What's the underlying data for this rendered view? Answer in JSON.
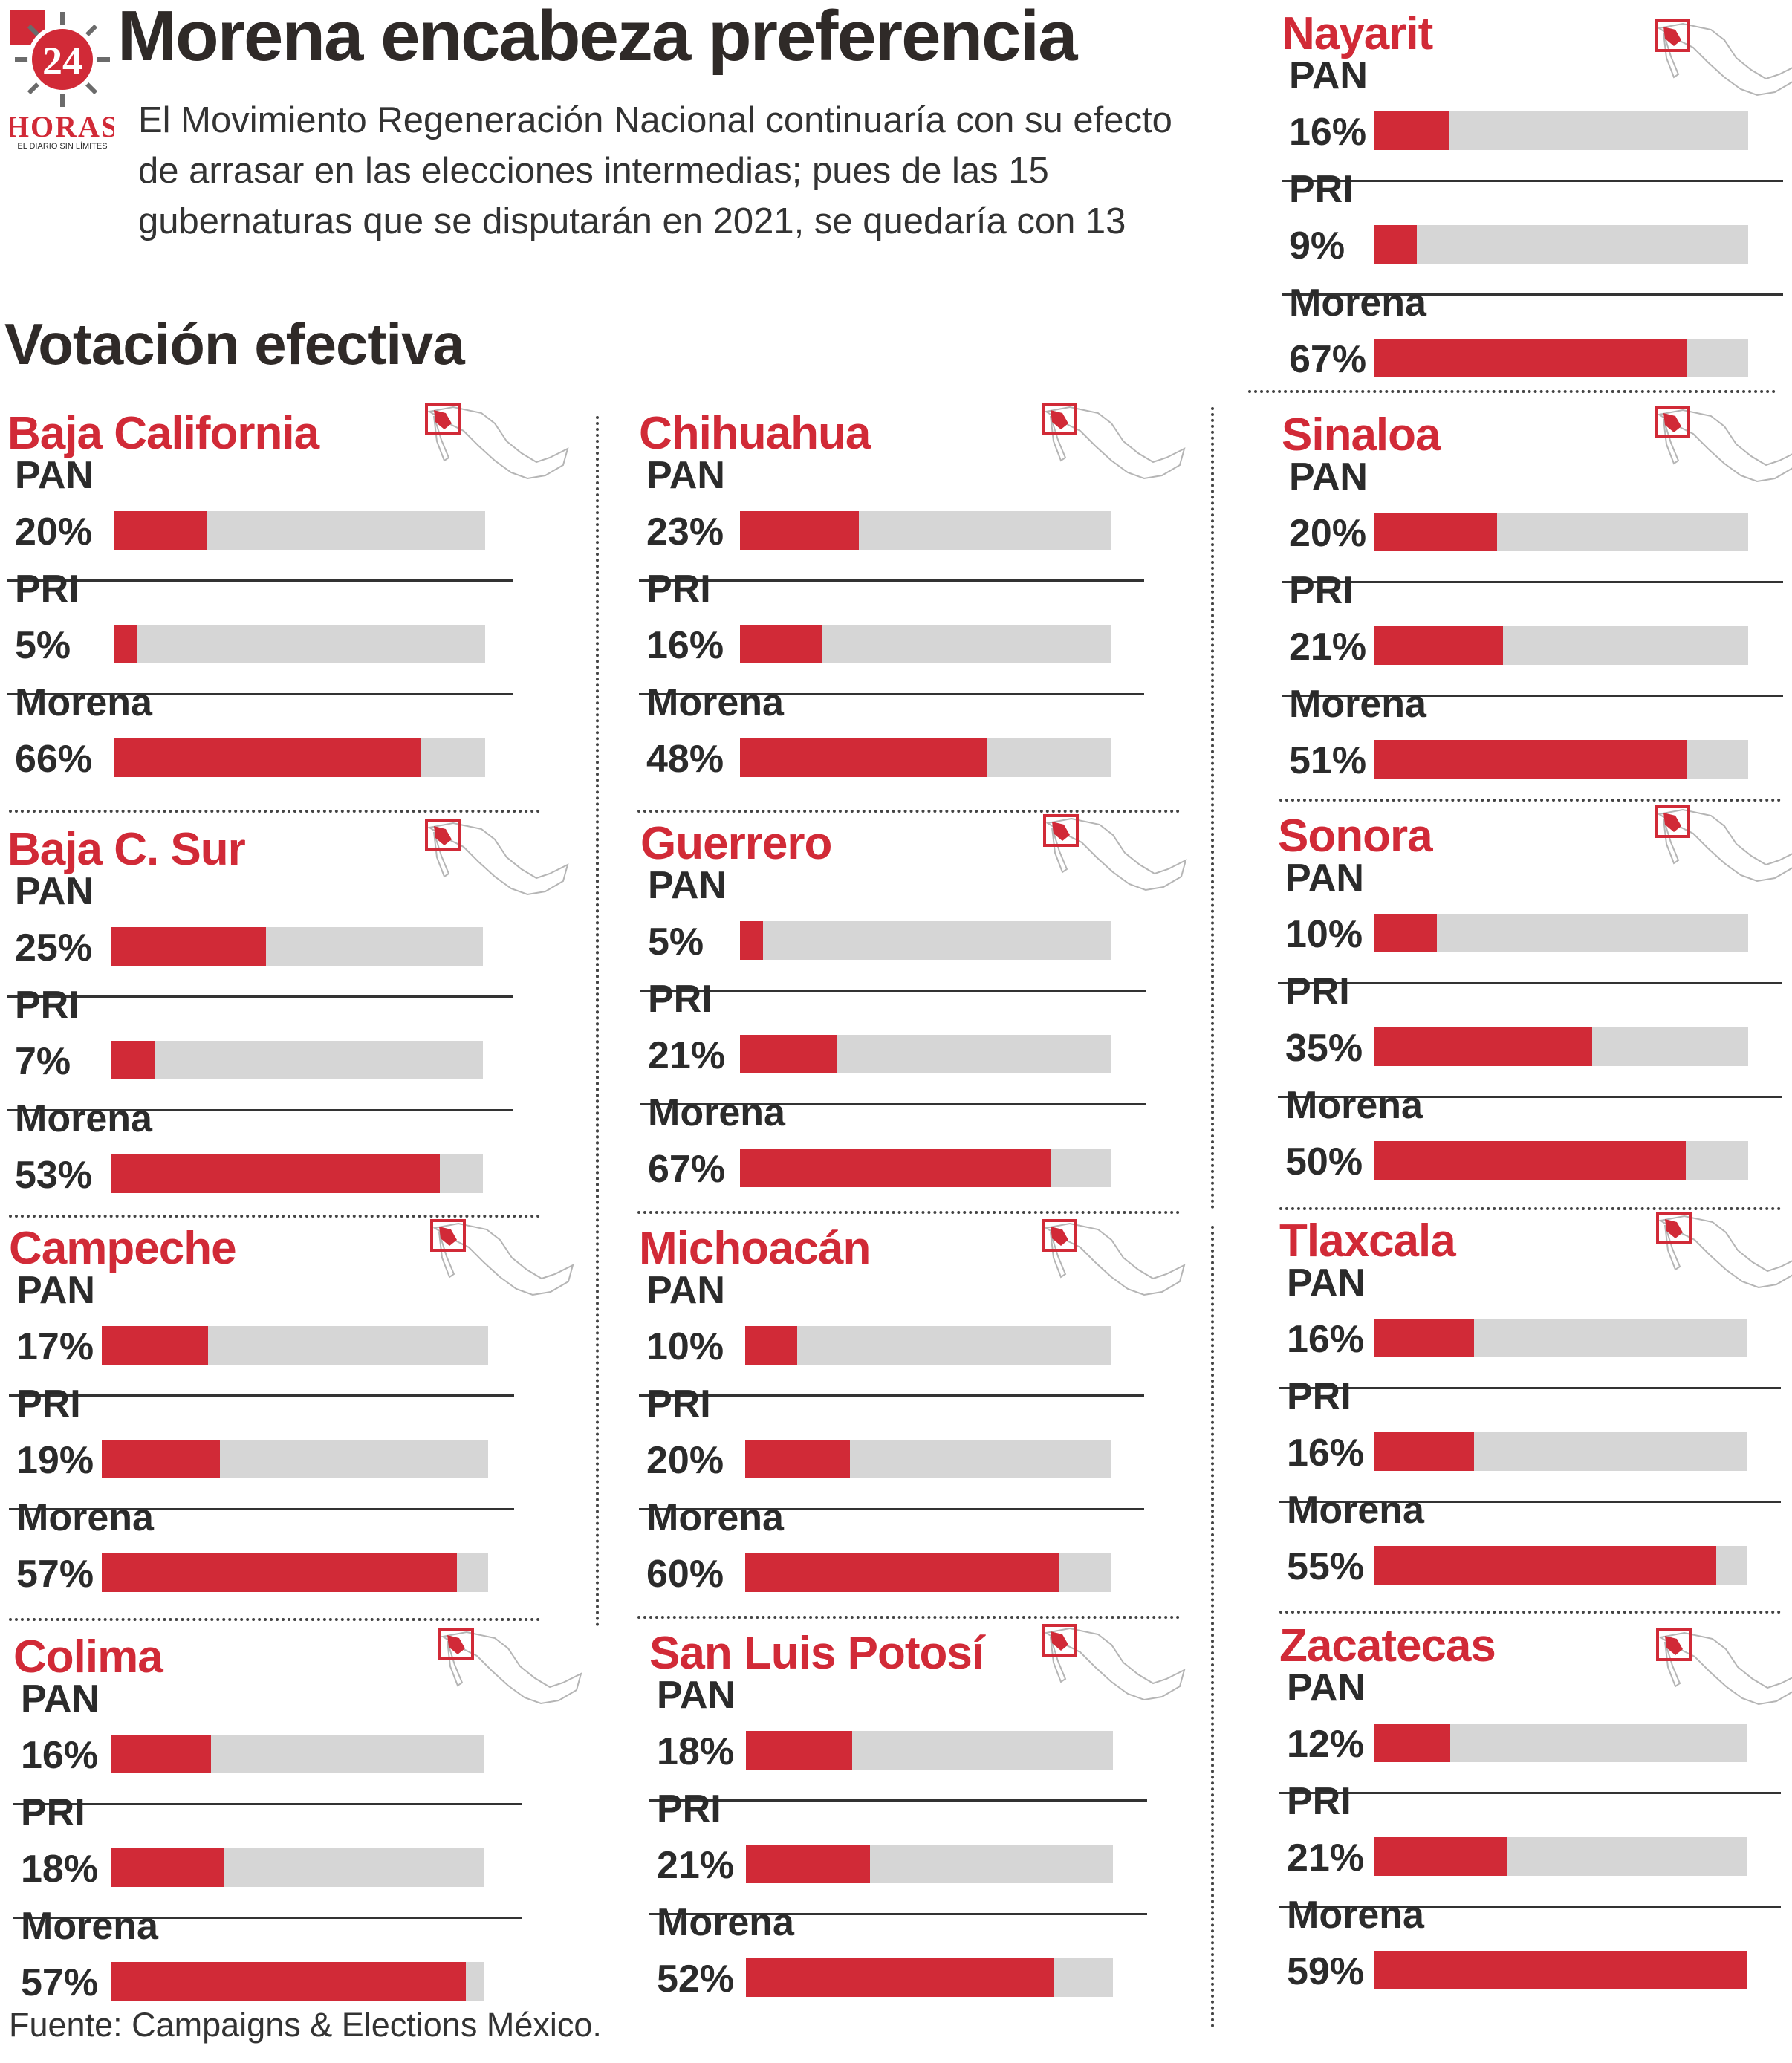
{
  "brand": {
    "logo_number": "24",
    "logo_name": "HORAS",
    "logo_tagline": "EL DIARIO SIN LÍMITES"
  },
  "title": "Morena encabeza preferencia",
  "subtitle": "El Movimiento Regeneración Nacional continuaría con su efecto de arrasar en las elecciones intermedias; pues de las 15 gubernaturas que se disputarán en 2021, se quedaría con 13",
  "section_title": "Votación efectiva",
  "source": "Fuente: Campaigns & Elections México.",
  "colors": {
    "accent": "#d12a37",
    "track": "#d6d6d6",
    "text": "#2b2b2b"
  },
  "chart_data": [
    {
      "type": "bar",
      "title": "Baja California",
      "categories": [
        "PAN",
        "PRI",
        "Morena"
      ],
      "values": [
        20,
        5,
        66
      ],
      "value_labels": [
        "20%",
        "5%",
        "66%"
      ],
      "xlim": [
        0,
        80
      ],
      "icon": "mexico-map-icon"
    },
    {
      "type": "bar",
      "title": "Baja C. Sur",
      "categories": [
        "PAN",
        "PRI",
        "Morena"
      ],
      "values": [
        25,
        7,
        53
      ],
      "value_labels": [
        "25%",
        "7%",
        "53%"
      ],
      "xlim": [
        0,
        60
      ],
      "icon": "mexico-map-icon"
    },
    {
      "type": "bar",
      "title": "Campeche",
      "categories": [
        "PAN",
        "PRI",
        "Morena"
      ],
      "values": [
        17,
        19,
        57
      ],
      "value_labels": [
        "17%",
        "19%",
        "57%"
      ],
      "xlim": [
        0,
        62
      ],
      "icon": "mexico-map-icon"
    },
    {
      "type": "bar",
      "title": "Colima",
      "categories": [
        "PAN",
        "PRI",
        "Morena"
      ],
      "values": [
        16,
        18,
        57
      ],
      "value_labels": [
        "16%",
        "18%",
        "57%"
      ],
      "xlim": [
        0,
        60
      ],
      "icon": "mexico-map-icon"
    },
    {
      "type": "bar",
      "title": "Chihuahua",
      "categories": [
        "PAN",
        "PRI",
        "Morena"
      ],
      "values": [
        23,
        16,
        48
      ],
      "value_labels": [
        "23%",
        "16%",
        "48%"
      ],
      "xlim": [
        0,
        72
      ],
      "icon": "mexico-map-icon"
    },
    {
      "type": "bar",
      "title": "Guerrero",
      "categories": [
        "PAN",
        "PRI",
        "Morena"
      ],
      "values": [
        5,
        21,
        67
      ],
      "value_labels": [
        "5%",
        "21%",
        "67%"
      ],
      "xlim": [
        0,
        80
      ],
      "icon": "mexico-map-icon"
    },
    {
      "type": "bar",
      "title": "Michoacán",
      "categories": [
        "PAN",
        "PRI",
        "Morena"
      ],
      "values": [
        10,
        20,
        60
      ],
      "value_labels": [
        "10%",
        "20%",
        "60%"
      ],
      "xlim": [
        0,
        70
      ],
      "icon": "mexico-map-icon"
    },
    {
      "type": "bar",
      "title": "San Luis Potosí",
      "categories": [
        "PAN",
        "PRI",
        "Morena"
      ],
      "values": [
        18,
        21,
        52
      ],
      "value_labels": [
        "18%",
        "21%",
        "52%"
      ],
      "xlim": [
        0,
        62
      ],
      "icon": "mexico-map-icon"
    },
    {
      "type": "bar",
      "title": "Nayarit",
      "categories": [
        "PAN",
        "PRI",
        "Morena"
      ],
      "values": [
        16,
        9,
        67
      ],
      "value_labels": [
        "16%",
        "9%",
        "67%"
      ],
      "xlim": [
        0,
        80
      ],
      "icon": "mexico-map-icon"
    },
    {
      "type": "bar",
      "title": "Sinaloa",
      "categories": [
        "PAN",
        "PRI",
        "Morena"
      ],
      "values": [
        20,
        21,
        51
      ],
      "value_labels": [
        "20%",
        "21%",
        "51%"
      ],
      "xlim": [
        0,
        61
      ],
      "icon": "mexico-map-icon"
    },
    {
      "type": "bar",
      "title": "Sonora",
      "categories": [
        "PAN",
        "PRI",
        "Morena"
      ],
      "values": [
        10,
        35,
        50
      ],
      "value_labels": [
        "10%",
        "35%",
        "50%"
      ],
      "xlim": [
        0,
        60
      ],
      "icon": "mexico-map-icon"
    },
    {
      "type": "bar",
      "title": "Tlaxcala",
      "categories": [
        "PAN",
        "PRI",
        "Morena"
      ],
      "values": [
        16,
        16,
        55
      ],
      "value_labels": [
        "16%",
        "16%",
        "55%"
      ],
      "xlim": [
        0,
        60
      ],
      "icon": "mexico-map-icon"
    },
    {
      "type": "bar",
      "title": "Zacatecas",
      "categories": [
        "PAN",
        "PRI",
        "Morena"
      ],
      "values": [
        12,
        21,
        59
      ],
      "value_labels": [
        "12%",
        "21%",
        "59%"
      ],
      "xlim": [
        0,
        59
      ],
      "icon": "mexico-map-icon"
    }
  ]
}
